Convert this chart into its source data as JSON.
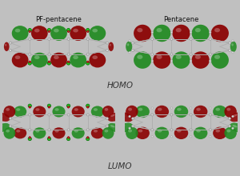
{
  "background_color": "#c0c0c0",
  "title_top_left": "PF-pentacene",
  "title_top_right": "Pentacene",
  "label_homo": "HOMO",
  "label_lumo": "LUMO",
  "green_color": "#228B22",
  "red_color": "#8B0000",
  "atom_color_light": "#e0e0e0",
  "atom_color_mid": "#b8b8b8",
  "atom_edge": "#888888",
  "f_atom_color": "#22cc22",
  "f_atom_edge": "#006600",
  "figsize": [
    3.0,
    2.2
  ],
  "dpi": 100
}
